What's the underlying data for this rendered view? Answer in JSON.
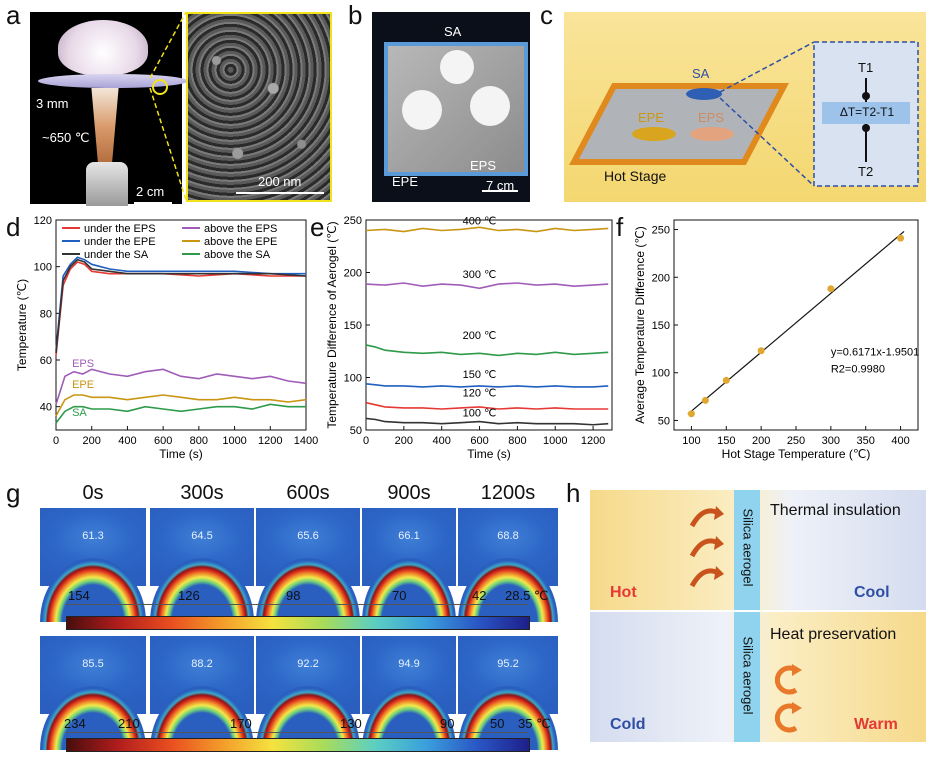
{
  "labels": {
    "a": "a",
    "b": "b",
    "c": "c",
    "d": "d",
    "e": "e",
    "f": "f",
    "g": "g",
    "h": "h"
  },
  "panel_a": {
    "thickness": "3 mm",
    "temp": "~650 ℃",
    "scale_left": "2 cm",
    "scale_right": "200 nm"
  },
  "panel_b": {
    "sa": "SA",
    "epe": "EPE",
    "eps": "EPS",
    "scale": "7 cm"
  },
  "panel_c": {
    "sa": "SA",
    "epe": "EPE",
    "eps": "EPS",
    "hot_stage": "Hot Stage",
    "t1": "T1",
    "t2": "T2",
    "delta": "ΔT=T2-T1"
  },
  "panel_g": {
    "times": [
      "0s",
      "300s",
      "600s",
      "900s",
      "1200s"
    ],
    "row1_values": [
      "61.3",
      "64.5",
      "65.6",
      "66.1",
      "68.8"
    ],
    "row2_values": [
      "85.5",
      "88.2",
      "92.2",
      "94.9",
      "95.2"
    ],
    "row1_scale": [
      "154",
      "126",
      "98",
      "70",
      "42",
      "28.5 ℃"
    ],
    "row2_scale": [
      "234",
      "210",
      "170",
      "130",
      "90",
      "50",
      "35 ℃"
    ]
  },
  "panel_h": {
    "top_material": "Silica aerogel",
    "top_title": "Thermal insulation",
    "top_left": "Hot",
    "top_right": "Cool",
    "bottom_material": "Silica aerogel",
    "bottom_title": "Heat preservation",
    "bottom_left": "Cold",
    "bottom_right": "Warm",
    "colors": {
      "hot": "#e53935",
      "cool": "#2f4fa6",
      "warm": "#e53935",
      "cold": "#2f4fa6",
      "aerogel": "#8fd3ef"
    }
  },
  "chart_data": [
    {
      "id": "d",
      "type": "line",
      "xlabel": "Time (s)",
      "ylabel": "Temperature (℃)",
      "xlim": [
        0,
        1400
      ],
      "ylim": [
        30,
        120
      ],
      "xticks": [
        0,
        200,
        400,
        600,
        800,
        1000,
        1200,
        1400
      ],
      "yticks": [
        40,
        60,
        80,
        100,
        120
      ],
      "legend_placement": "top",
      "annotations": [
        "EPS",
        "EPE",
        "SA"
      ],
      "series": [
        {
          "name": "under the EPS",
          "color": "#e53935",
          "x": [
            0,
            40,
            80,
            120,
            160,
            200,
            300,
            400,
            600,
            800,
            1000,
            1200,
            1400
          ],
          "y": [
            62,
            92,
            99,
            102,
            101,
            98,
            97,
            97,
            97,
            96,
            97,
            96,
            96
          ]
        },
        {
          "name": "under the EPE",
          "color": "#1f5fbf",
          "x": [
            0,
            40,
            80,
            120,
            160,
            200,
            300,
            400,
            600,
            800,
            1000,
            1200,
            1400
          ],
          "y": [
            64,
            96,
            101,
            104,
            103,
            101,
            99,
            98,
            98,
            98,
            98,
            97,
            97
          ]
        },
        {
          "name": "under the SA",
          "color": "#333333",
          "x": [
            0,
            40,
            80,
            120,
            160,
            200,
            300,
            400,
            600,
            800,
            1000,
            1200,
            1400
          ],
          "y": [
            63,
            94,
            100,
            103,
            102,
            99,
            98,
            97,
            97,
            97,
            97,
            97,
            96
          ]
        },
        {
          "name": "above the EPS",
          "color": "#a05db8",
          "x": [
            0,
            50,
            100,
            150,
            200,
            300,
            400,
            500,
            600,
            700,
            800,
            900,
            1000,
            1100,
            1200,
            1300,
            1400
          ],
          "y": [
            41,
            53,
            55,
            54,
            56,
            54,
            53,
            55,
            56,
            53,
            52,
            54,
            53,
            52,
            53,
            51,
            50
          ]
        },
        {
          "name": "above the EPE",
          "color": "#c99512",
          "x": [
            0,
            50,
            100,
            150,
            200,
            300,
            400,
            500,
            600,
            700,
            800,
            900,
            1000,
            1100,
            1200,
            1300,
            1400
          ],
          "y": [
            36,
            43,
            45,
            45,
            44,
            44,
            43,
            44,
            45,
            44,
            43,
            43,
            44,
            43,
            43,
            42,
            43
          ]
        },
        {
          "name": "above the SA",
          "color": "#2e9a4a",
          "x": [
            0,
            50,
            100,
            150,
            200,
            300,
            400,
            500,
            600,
            700,
            800,
            900,
            1000,
            1100,
            1200,
            1300,
            1400
          ],
          "y": [
            33,
            38,
            40,
            40,
            39,
            39,
            38,
            40,
            39,
            38,
            39,
            40,
            40,
            39,
            41,
            40,
            40
          ]
        }
      ]
    },
    {
      "id": "e",
      "type": "line",
      "xlabel": "Time (s)",
      "ylabel": "Temperature Difference of Aerogel (℃)",
      "xlim": [
        0,
        1300
      ],
      "ylim": [
        50,
        250
      ],
      "xticks": [
        0,
        200,
        400,
        600,
        800,
        1000,
        1200
      ],
      "yticks": [
        50,
        100,
        150,
        200,
        250
      ],
      "series": [
        {
          "name": "400 ℃",
          "color": "#c99512",
          "x": [
            0,
            100,
            200,
            300,
            400,
            500,
            600,
            700,
            800,
            900,
            1000,
            1100,
            1200,
            1280
          ],
          "y": [
            240,
            241,
            239,
            242,
            240,
            241,
            243,
            240,
            241,
            239,
            242,
            240,
            241,
            242
          ]
        },
        {
          "name": "300 ℃",
          "color": "#a05db8",
          "x": [
            0,
            100,
            200,
            300,
            400,
            500,
            600,
            700,
            800,
            900,
            1000,
            1100,
            1200,
            1280
          ],
          "y": [
            189,
            188,
            190,
            187,
            189,
            188,
            185,
            189,
            190,
            188,
            189,
            187,
            188,
            189
          ]
        },
        {
          "name": "200 ℃",
          "color": "#2e9a4a",
          "x": [
            0,
            50,
            100,
            200,
            300,
            400,
            500,
            600,
            700,
            800,
            900,
            1000,
            1100,
            1200,
            1280
          ],
          "y": [
            131,
            129,
            126,
            124,
            123,
            124,
            122,
            123,
            121,
            123,
            122,
            124,
            122,
            123,
            124
          ]
        },
        {
          "name": "150 ℃",
          "color": "#1f5fbf",
          "x": [
            0,
            50,
            100,
            200,
            300,
            400,
            500,
            600,
            700,
            800,
            900,
            1000,
            1100,
            1200,
            1280
          ],
          "y": [
            94,
            93,
            92,
            92,
            91,
            92,
            91,
            92,
            91,
            92,
            91,
            92,
            91,
            91,
            92
          ]
        },
        {
          "name": "120 ℃",
          "color": "#e53935",
          "x": [
            0,
            50,
            100,
            200,
            300,
            400,
            500,
            600,
            700,
            800,
            900,
            1000,
            1100,
            1200,
            1280
          ],
          "y": [
            76,
            74,
            72,
            71,
            71,
            70,
            71,
            72,
            70,
            71,
            70,
            71,
            70,
            70,
            70
          ]
        },
        {
          "name": "100 ℃",
          "color": "#333333",
          "x": [
            0,
            50,
            100,
            200,
            300,
            400,
            500,
            600,
            700,
            800,
            900,
            1000,
            1100,
            1200,
            1280
          ],
          "y": [
            61,
            60,
            58,
            57,
            57,
            56,
            57,
            58,
            56,
            57,
            56,
            56,
            56,
            55,
            56
          ]
        }
      ]
    },
    {
      "id": "f",
      "type": "scatter",
      "xlabel": "Hot Stage Temperature (℃)",
      "ylabel": "Average Temperature Difference (℃)",
      "xlim": [
        75,
        425
      ],
      "ylim": [
        40,
        260
      ],
      "xticks": [
        100,
        150,
        200,
        250,
        300,
        350,
        400
      ],
      "yticks": [
        50,
        100,
        150,
        200,
        250
      ],
      "fit_equation": "y=0.6171x-1.9501",
      "fit_r2": "R2=0.9980",
      "x": [
        100,
        120,
        150,
        200,
        300,
        400
      ],
      "y": [
        57,
        71,
        92,
        123,
        188,
        241
      ],
      "fit": {
        "slope": 0.6171,
        "intercept": -1.9501
      }
    }
  ]
}
